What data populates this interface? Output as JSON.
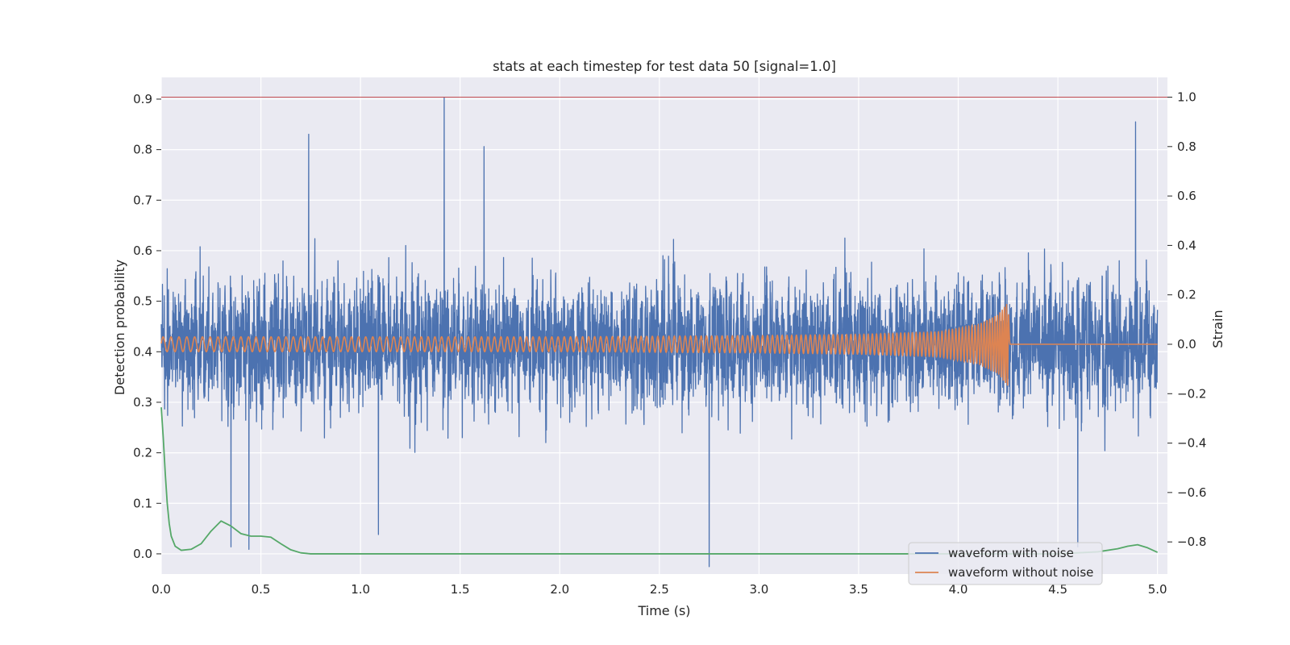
{
  "chart_data": {
    "type": "line",
    "title": "stats at each timestep for test data 50 [signal=1.0]",
    "xlabel": "Time (s)",
    "ylabel_left": "Detection probability",
    "ylabel_right": "Strain",
    "xlim": [
      0.0,
      5.05
    ],
    "ylim_left": [
      -0.04,
      0.943
    ],
    "ylim_right": [
      -0.93,
      1.08
    ],
    "x_ticks": [
      "0.0",
      "0.5",
      "1.0",
      "1.5",
      "2.0",
      "2.5",
      "3.0",
      "3.5",
      "4.0",
      "4.5",
      "5.0"
    ],
    "y_ticks_left": [
      "0.0",
      "0.1",
      "0.2",
      "0.3",
      "0.4",
      "0.5",
      "0.6",
      "0.7",
      "0.8",
      "0.9"
    ],
    "y_ticks_right": [
      "−0.8",
      "−0.6",
      "−0.4",
      "−0.2",
      "0.0",
      "0.2",
      "0.4",
      "0.6",
      "0.8",
      "1.0"
    ],
    "grid": true,
    "legend": {
      "position": "lower right",
      "entries": [
        "waveform with noise",
        "waveform without noise"
      ]
    },
    "colors": {
      "noise": "#4c72b0",
      "clean": "#dd8452",
      "probability": "#55a868",
      "threshold": "#c44e52",
      "background": "#eaeaf2",
      "grid": "#ffffff"
    },
    "threshold": {
      "axis": "right",
      "y": 1.0
    },
    "series": [
      {
        "name": "waveform with noise",
        "axis": "right",
        "note_values": "strain noise, roughly within ±0.5 with spikes up to 1.0 near t=1.42 and down to about −0.9 near t=2.75",
        "sampled": true,
        "amplitude_std": 0.22,
        "peaks": [
          [
            1.42,
            1.0
          ],
          [
            2.75,
            -0.9
          ],
          [
            4.89,
            0.9
          ],
          [
            0.74,
            0.85
          ],
          [
            1.62,
            0.8
          ],
          [
            0.35,
            -0.82
          ],
          [
            0.44,
            -0.83
          ],
          [
            1.09,
            -0.77
          ],
          [
            4.6,
            -0.82
          ]
        ]
      },
      {
        "name": "waveform without noise",
        "axis": "right",
        "t": [
          0.0,
          1.0,
          2.0,
          3.0,
          3.5,
          3.9,
          4.1,
          4.2,
          4.25,
          4.26,
          5.0
        ],
        "envelope": [
          0.03,
          0.03,
          0.03,
          0.035,
          0.04,
          0.05,
          0.08,
          0.12,
          0.17,
          0.0,
          0.0
        ],
        "freq_hz": [
          25,
          28,
          32,
          40,
          46,
          55,
          65,
          80,
          100,
          0,
          0
        ]
      },
      {
        "name": "",
        "axis": "left",
        "x": [
          0.0,
          0.01,
          0.02,
          0.03,
          0.04,
          0.05,
          0.07,
          0.1,
          0.15,
          0.2,
          0.25,
          0.3,
          0.35,
          0.4,
          0.45,
          0.5,
          0.55,
          0.6,
          0.65,
          0.7,
          0.75,
          0.8,
          1.0,
          1.5,
          2.0,
          2.5,
          3.0,
          3.5,
          4.0,
          4.5,
          4.7,
          4.8,
          4.85,
          4.9,
          4.95,
          5.0
        ],
        "y": [
          0.29,
          0.23,
          0.16,
          0.1,
          0.06,
          0.035,
          0.015,
          0.007,
          0.009,
          0.02,
          0.045,
          0.065,
          0.055,
          0.04,
          0.035,
          0.035,
          0.033,
          0.02,
          0.008,
          0.002,
          0.0,
          0.0,
          0.0,
          0.0,
          0.0,
          0.0,
          0.0,
          0.0,
          0.0,
          0.0,
          0.004,
          0.01,
          0.015,
          0.018,
          0.012,
          0.003
        ]
      }
    ]
  }
}
